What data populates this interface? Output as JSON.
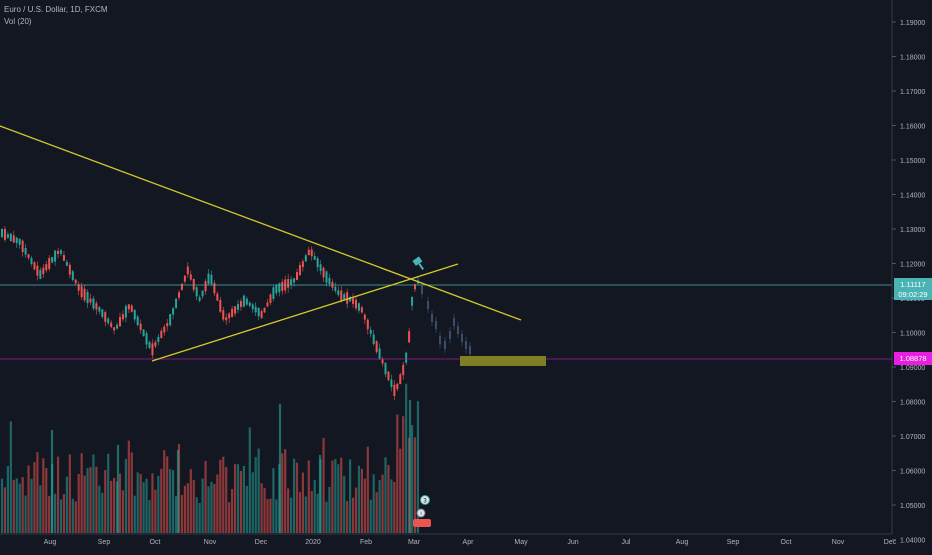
{
  "legend": {
    "symbol_line": "Euro / U.S. Dollar, 1D, FXCM",
    "volume_line": "Vol (20)"
  },
  "price_axis": {
    "ticks": [
      "1.19000",
      "1.18000",
      "1.17000",
      "1.16000",
      "1.15000",
      "1.14000",
      "1.13000",
      "1.12000",
      "1.11000",
      "1.10000",
      "1.09000",
      "1.08000",
      "1.07000",
      "1.06000",
      "1.05000",
      "1.04000"
    ],
    "current_price": "1.11117",
    "countdown": "09:02:29",
    "alert_price": "1.08878"
  },
  "time_axis": {
    "labels": [
      "Aug",
      "Sep",
      "Oct",
      "Nov",
      "Dec",
      "2020",
      "Feb",
      "Mar",
      "Apr",
      "May",
      "Jun",
      "Jul",
      "Aug",
      "Sep",
      "Oct",
      "Nov",
      "Dec"
    ]
  },
  "markers": {
    "earnings_count": "3"
  },
  "colors": {
    "background": "#131722",
    "up": "#26a69a",
    "down": "#ef5350",
    "trendline": "#d4c92a",
    "current_price_line": "#4bb3b3",
    "alert_line": "#e91ee0",
    "target_box": "#8c8a25"
  }
}
